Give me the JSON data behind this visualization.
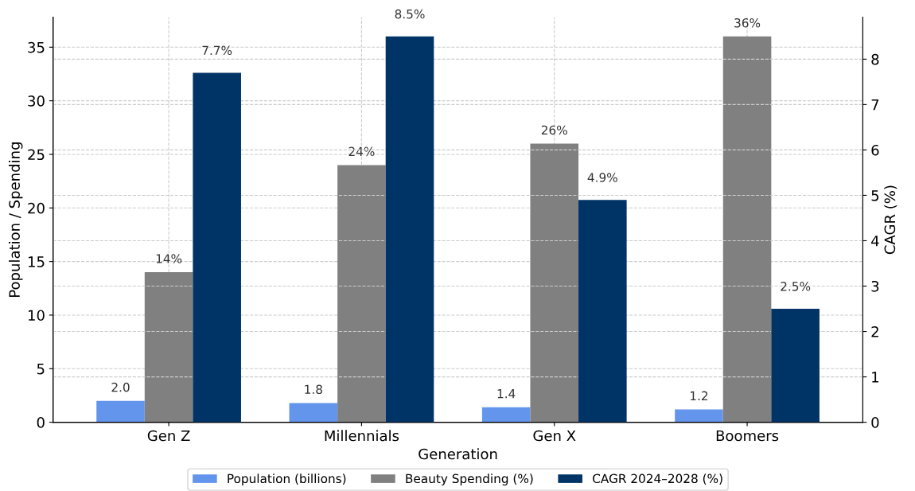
{
  "chart_data": {
    "type": "bar",
    "xlabel": "Generation",
    "ylabel": "Population / Spending",
    "y2label": "CAGR (%)",
    "categories": [
      "Gen Z",
      "Millennials",
      "Gen X",
      "Boomers"
    ],
    "series": [
      {
        "name": "Population (billions)",
        "color": "#6495ed",
        "values": [
          2.0,
          1.8,
          1.4,
          1.2
        ],
        "value_labels": [
          "2.0",
          "1.8",
          "1.4",
          "1.2"
        ]
      },
      {
        "name": "Beauty Spending (%)",
        "color": "#808080",
        "values": [
          14,
          24,
          26,
          36
        ],
        "value_labels": [
          "14%",
          "24%",
          "26%",
          "36%"
        ]
      },
      {
        "name": "CAGR 2024–2028 (%)",
        "color": "#003366",
        "values": [
          7.7,
          8.5,
          4.9,
          2.5
        ],
        "value_labels": [
          "7.7%",
          "8.5%",
          "4.9%",
          "2.5%"
        ],
        "axis": "y2"
      }
    ],
    "ylim": [
      0,
      37.8
    ],
    "yticks": [
      0,
      5,
      10,
      15,
      20,
      25,
      30,
      35
    ],
    "y2lim": [
      0,
      8.925
    ],
    "y2ticks": [
      0,
      1,
      2,
      3,
      4,
      5,
      6,
      7,
      8
    ],
    "grid": true,
    "legend": "bottom"
  }
}
